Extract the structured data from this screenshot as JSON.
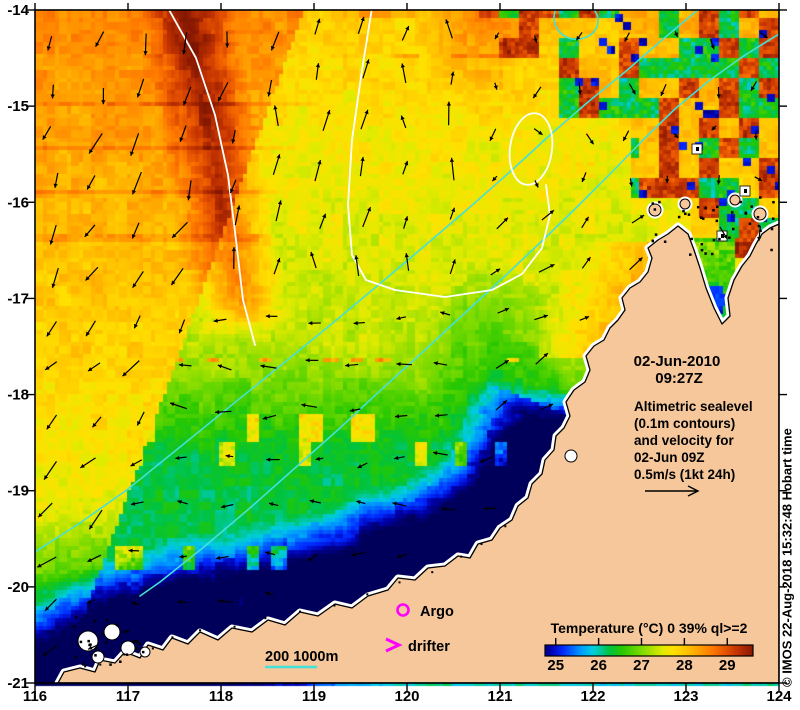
{
  "map": {
    "date_line1": "02-Jun-2010",
    "date_line2": "09:27Z",
    "annotation_lines": [
      "Altimetric sealevel",
      "(0.1m contours)",
      "and velocity for",
      "02-Jun 09Z",
      "0.5m/s (1kt 24h)"
    ],
    "bathy_label": "200 1000m",
    "legend": {
      "argo_label": "Argo",
      "drifter_label": "drifter"
    },
    "credit": "© IMOS 22-Aug-2018 15:32:48 Hobart time"
  },
  "axes": {
    "lon_ticks": [
      116,
      117,
      118,
      119,
      120,
      121,
      122,
      123,
      124
    ],
    "lat_ticks": [
      -14,
      -15,
      -16,
      -17,
      -18,
      -19,
      -20,
      -21
    ]
  },
  "colorbar": {
    "title": "Temperature (°C) 0 39% ql>=2",
    "ticks": [
      25,
      26,
      27,
      28,
      29
    ]
  },
  "colors": {
    "land": "#F5C79B",
    "coast_halo": "#FFFFFF",
    "ssh_contour": "#FFFFFF",
    "bathy_contour": "#45E0D8",
    "marker_magenta": "#FF00FF",
    "cold_end": "#00005A",
    "warm_end": "#701000"
  }
}
